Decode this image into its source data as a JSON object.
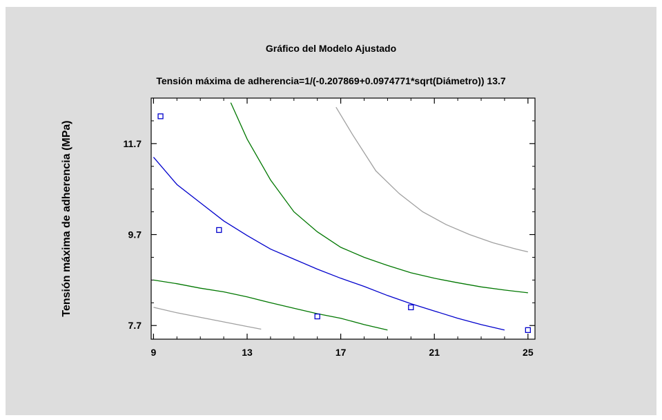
{
  "chart_data": {
    "type": "line",
    "title": "Gráfico del Modelo Ajustado",
    "subtitle": "Tensión máxima de adherencia=1/(-0.207869+0.0974771*sqrt(Diámetro)) 13.7",
    "xlabel": "",
    "ylabel": "Tensión máxima de adherencia (MPa)",
    "xlim": [
      8.9,
      25.3
    ],
    "ylim": [
      7.4,
      12.7
    ],
    "xticks": [
      9,
      13,
      17,
      21,
      25
    ],
    "yticks": [
      7.7,
      9.7,
      11.7
    ],
    "grid": false,
    "colors": {
      "fit": "#0000cc",
      "confidence": "#007700",
      "prediction": "#a0a0a0",
      "points": "#0000cc"
    },
    "series": [
      {
        "role": "fit",
        "color": "#0000cc",
        "x": [
          9.0,
          10.0,
          11.0,
          12.0,
          13.0,
          14.0,
          15.0,
          16.0,
          17.0,
          18.0,
          19.0,
          20.0,
          21.0,
          22.0,
          23.0,
          24.0
        ],
        "y": [
          11.4,
          10.8,
          10.4,
          10.0,
          9.68,
          9.38,
          9.16,
          8.94,
          8.74,
          8.56,
          8.36,
          8.18,
          8.02,
          7.86,
          7.72,
          7.6
        ]
      },
      {
        "role": "confidence-upper",
        "color": "#007700",
        "x": [
          12.3,
          13.0,
          14.0,
          15.0,
          16.0,
          17.0,
          18.0,
          19.0,
          20.0,
          21.0,
          22.0,
          23.0,
          24.0,
          25.0
        ],
        "y": [
          12.6,
          11.8,
          10.9,
          10.2,
          9.76,
          9.42,
          9.2,
          9.02,
          8.86,
          8.74,
          8.64,
          8.55,
          8.48,
          8.42
        ]
      },
      {
        "role": "confidence-lower",
        "color": "#007700",
        "x": [
          9.0,
          10.0,
          11.0,
          12.0,
          13.0,
          14.0,
          15.0,
          16.0,
          17.0,
          18.0,
          19.0
        ],
        "y": [
          8.7,
          8.62,
          8.52,
          8.44,
          8.33,
          8.2,
          8.08,
          7.96,
          7.86,
          7.72,
          7.6
        ]
      },
      {
        "role": "prediction-upper",
        "color": "#a0a0a0",
        "x": [
          16.8,
          17.5,
          18.5,
          19.5,
          20.5,
          21.5,
          22.5,
          23.5,
          24.5,
          25.0
        ],
        "y": [
          12.5,
          11.9,
          11.1,
          10.6,
          10.2,
          9.92,
          9.7,
          9.52,
          9.38,
          9.32
        ]
      },
      {
        "role": "prediction-lower",
        "color": "#a0a0a0",
        "x": [
          9.0,
          10.0,
          11.0,
          12.0,
          13.0,
          13.6
        ],
        "y": [
          8.1,
          7.98,
          7.88,
          7.78,
          7.68,
          7.62
        ]
      }
    ],
    "points": [
      {
        "x": 9.3,
        "y": 12.3
      },
      {
        "x": 11.8,
        "y": 9.8
      },
      {
        "x": 16.0,
        "y": 7.9
      },
      {
        "x": 20.0,
        "y": 8.1
      },
      {
        "x": 25.0,
        "y": 7.6
      }
    ]
  }
}
